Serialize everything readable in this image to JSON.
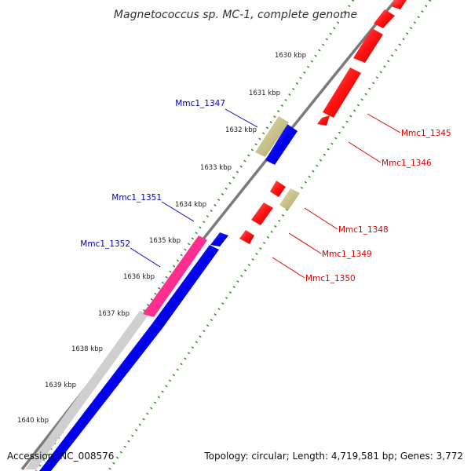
{
  "title": "Magnetococcus sp. MC-1, complete genome",
  "footer": {
    "accession": "Accession: NC_008576",
    "summary": "Topology: circular; Length: 4,719,581 bp; Genes: 3,772"
  },
  "colors": {
    "backbone": "#7a7a7a",
    "tick": "#2e8b22",
    "forward_cds": "#0000ee",
    "reverse_cds": "#ff1111",
    "other_gene": "#c8c38a",
    "highlight": "#ff2f8f",
    "forward_label": "#0000bb",
    "reverse_label": "#dd0000"
  },
  "ticks": [
    {
      "label": "1630 kbp"
    },
    {
      "label": "1631 kbp"
    },
    {
      "label": "1632 kbp"
    },
    {
      "label": "1633 kbp"
    },
    {
      "label": "1634 kbp"
    },
    {
      "label": "1635 kbp"
    },
    {
      "label": "1636 kbp"
    },
    {
      "label": "1637 kbp"
    },
    {
      "label": "1638 kbp"
    },
    {
      "label": "1639 kbp"
    },
    {
      "label": "1640 kbp"
    }
  ],
  "gene_labels": {
    "forward": [
      {
        "label": "Mmc1_1347"
      },
      {
        "label": "Mmc1_1351"
      },
      {
        "label": "Mmc1_1352"
      }
    ],
    "reverse": [
      {
        "label": "Mmc1_1345"
      },
      {
        "label": "Mmc1_1346"
      },
      {
        "label": "Mmc1_1348"
      },
      {
        "label": "Mmc1_1349"
      },
      {
        "label": "Mmc1_1350"
      }
    ]
  }
}
